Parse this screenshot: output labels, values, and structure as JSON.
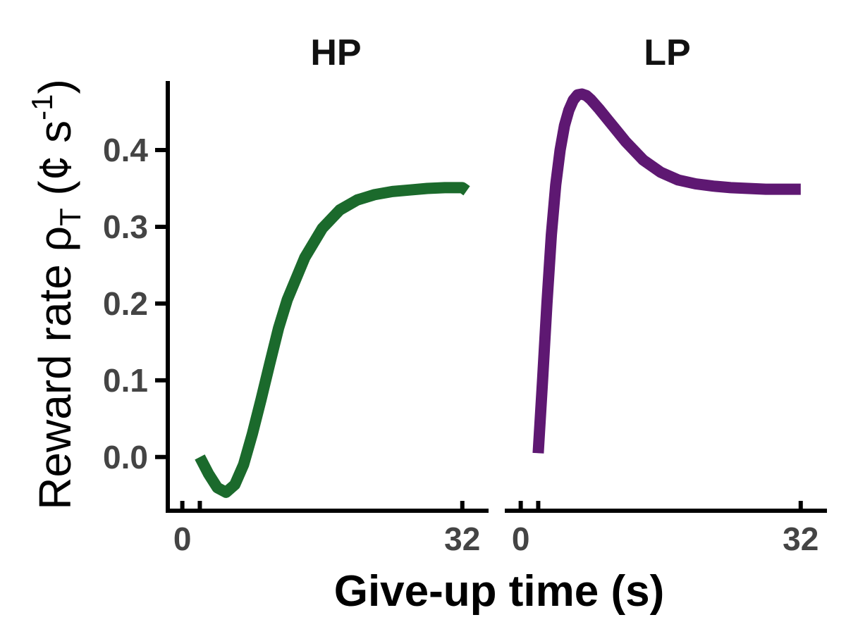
{
  "chart_data": {
    "type": "line",
    "ylabel": {
      "main": "Reward rate ρ",
      "sub": "T",
      "unit_open": " (¢ s",
      "unit_sup": "-1",
      "unit_close": ")"
    },
    "xlabel": "Give-up time (s)",
    "ylim": [
      -0.07,
      0.49
    ],
    "yticks": [
      0.0,
      0.1,
      0.2,
      0.3,
      0.4
    ],
    "ytick_labels": [
      "0.0",
      "0.1",
      "0.2",
      "0.3",
      "0.4"
    ],
    "panels": [
      {
        "title": "HP",
        "color": "#1b6a2c",
        "xlim": [
          -1.5,
          35
        ],
        "xticks": [
          0,
          2,
          32
        ],
        "xtick_labels": [
          "0",
          "",
          "32"
        ],
        "series": [
          {
            "x": [
              2.0,
              3.0,
              4.0,
              5.0,
              6.0,
              7.0,
              8.0,
              9.0,
              10.0,
              11.0,
              12.0,
              14.0,
              16.0,
              18.0,
              20.0,
              22.0,
              24.0,
              26.0,
              28.0,
              30.0,
              32.0,
              32.5
            ],
            "y": [
              0.0,
              -0.022,
              -0.04,
              -0.046,
              -0.036,
              -0.01,
              0.03,
              0.075,
              0.122,
              0.168,
              0.205,
              0.26,
              0.298,
              0.322,
              0.335,
              0.342,
              0.346,
              0.348,
              0.35,
              0.351,
              0.351,
              0.347
            ]
          }
        ]
      },
      {
        "title": "LP",
        "color": "#5e1872",
        "xlim": [
          -1.5,
          35
        ],
        "xticks": [
          0,
          2,
          32
        ],
        "xtick_labels": [
          "0",
          "",
          "32"
        ],
        "series": [
          {
            "x": [
              2.0,
              2.5,
              3.0,
              3.5,
              4.0,
              4.5,
              5.0,
              5.5,
              6.0,
              6.5,
              7.0,
              7.5,
              8.0,
              9.0,
              10.0,
              11.0,
              12.0,
              14.0,
              16.0,
              18.0,
              20.0,
              22.0,
              24.0,
              26.0,
              28.0,
              30.0,
              32.0
            ],
            "y": [
              0.005,
              0.1,
              0.2,
              0.29,
              0.355,
              0.4,
              0.432,
              0.452,
              0.465,
              0.472,
              0.473,
              0.471,
              0.466,
              0.453,
              0.439,
              0.425,
              0.411,
              0.387,
              0.371,
              0.361,
              0.356,
              0.353,
              0.351,
              0.35,
              0.349,
              0.349,
              0.349
            ]
          }
        ]
      }
    ]
  }
}
